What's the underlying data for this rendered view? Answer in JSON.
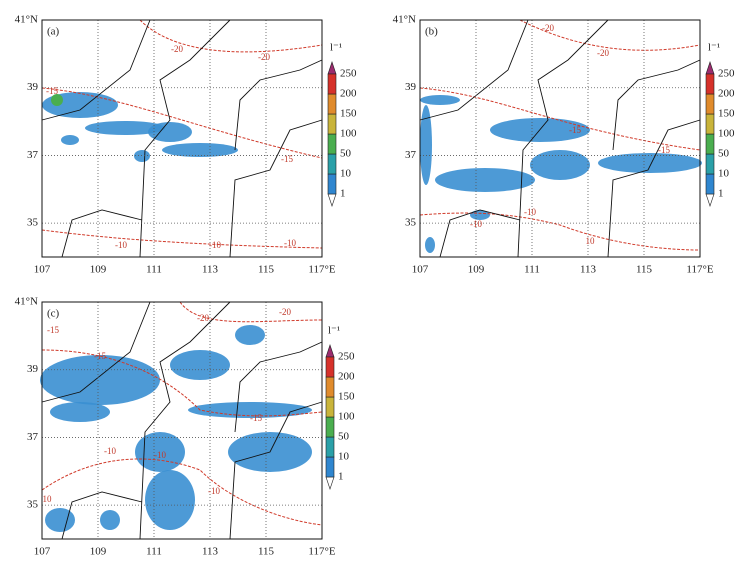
{
  "map": {
    "xlim": [
      107,
      117
    ],
    "ylim": [
      34,
      41
    ],
    "xticks": [
      107,
      109,
      111,
      113,
      115,
      {
        "value": 117,
        "label": "117°E"
      }
    ],
    "yticks": [
      35,
      37,
      39,
      {
        "value": 41,
        "label": "41°N"
      }
    ],
    "grid": true
  },
  "colorbar": {
    "unit": "l⁻¹",
    "levels": [
      1,
      10,
      50,
      100,
      150,
      200,
      250
    ],
    "colors": [
      "#ffffff",
      "#2f86cf",
      "#2aa0a8",
      "#4aae4f",
      "#c9b43a",
      "#e08b2c",
      "#d6312a",
      "#9c2c6e"
    ]
  },
  "panels": [
    {
      "label": "(a)",
      "contour_labels": [
        -15,
        -20,
        -20,
        -15,
        -10,
        -10,
        -10
      ]
    },
    {
      "label": "(b)",
      "contour_labels": [
        -20,
        -20,
        -15,
        -15,
        -10,
        -10,
        10
      ]
    },
    {
      "label": "(c)",
      "contour_labels": [
        -15,
        -15,
        -20,
        -20,
        -15,
        -10,
        -10,
        -10,
        10
      ]
    }
  ]
}
